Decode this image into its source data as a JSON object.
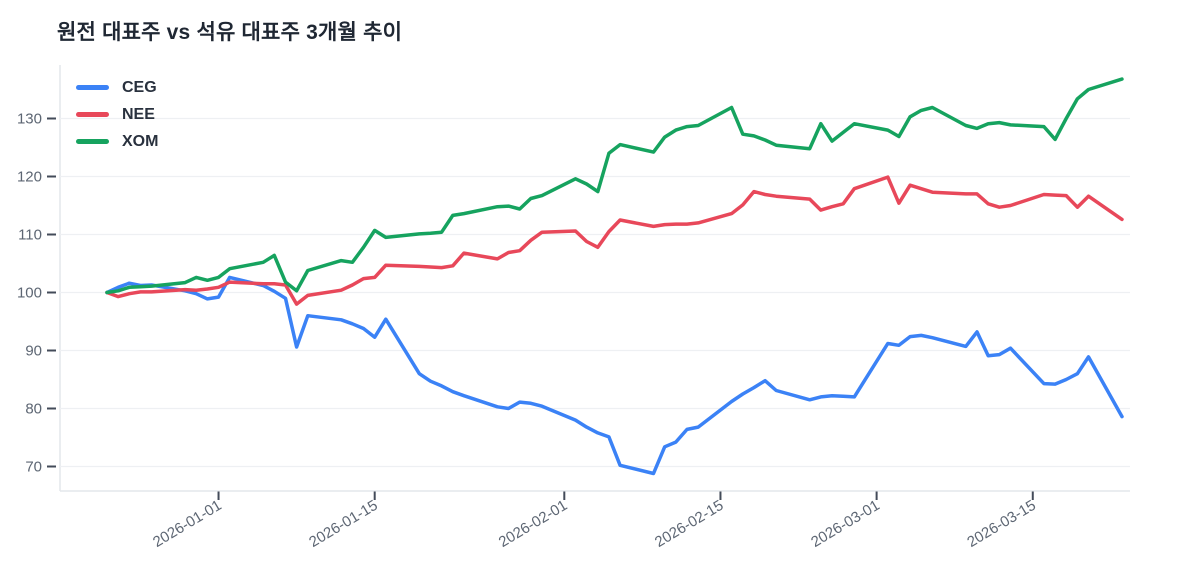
{
  "title": "원전 대표주 vs 석유 대표주 3개월 추이",
  "chart_data": {
    "type": "line",
    "title": "원전 대표주 vs 석유 대표주 3개월 추이",
    "xlabel": "",
    "ylabel": "",
    "grid": "horizontal",
    "legend_position": "top-left",
    "y_ticks": [
      70,
      80,
      90,
      100,
      110,
      120,
      130
    ],
    "ylim": [
      66.5,
      138.5
    ],
    "x_tick_labels": [
      "2026-01-01",
      "2026-01-15",
      "2026-02-01",
      "2026-02-15",
      "2026-03-01",
      "2026-03-15"
    ],
    "x": [
      "2025-12-22",
      "2025-12-23",
      "2025-12-24",
      "2025-12-25",
      "2025-12-26",
      "2025-12-29",
      "2025-12-30",
      "2025-12-31",
      "2026-01-01",
      "2026-01-02",
      "2026-01-05",
      "2026-01-06",
      "2026-01-07",
      "2026-01-08",
      "2026-01-09",
      "2026-01-12",
      "2026-01-13",
      "2026-01-14",
      "2026-01-15",
      "2026-01-16",
      "2026-01-19",
      "2026-01-20",
      "2026-01-21",
      "2026-01-22",
      "2026-01-23",
      "2026-01-26",
      "2026-01-27",
      "2026-01-28",
      "2026-01-29",
      "2026-01-30",
      "2026-02-02",
      "2026-02-03",
      "2026-02-04",
      "2026-02-05",
      "2026-02-06",
      "2026-02-09",
      "2026-02-10",
      "2026-02-11",
      "2026-02-12",
      "2026-02-13",
      "2026-02-16",
      "2026-02-17",
      "2026-02-18",
      "2026-02-19",
      "2026-02-20",
      "2026-02-23",
      "2026-02-24",
      "2026-02-25",
      "2026-02-26",
      "2026-02-27",
      "2026-03-02",
      "2026-03-03",
      "2026-03-04",
      "2026-03-05",
      "2026-03-06",
      "2026-03-09",
      "2026-03-10",
      "2026-03-11",
      "2026-03-12",
      "2026-03-13",
      "2026-03-16",
      "2026-03-17",
      "2026-03-18",
      "2026-03-19",
      "2026-03-20",
      "2026-03-23"
    ],
    "series": [
      {
        "name": "CEG",
        "color": "#3b82f6",
        "values": [
          100.0,
          100.9,
          101.6,
          101.2,
          101.3,
          100.3,
          99.8,
          98.9,
          99.2,
          102.6,
          101.2,
          100.2,
          99.0,
          90.6,
          96.0,
          95.3,
          94.6,
          93.8,
          92.3,
          95.4,
          86.0,
          84.7,
          83.9,
          82.9,
          82.2,
          80.3,
          80.0,
          81.1,
          80.9,
          80.4,
          78.0,
          76.8,
          75.8,
          75.1,
          70.2,
          68.8,
          73.4,
          74.2,
          76.4,
          76.8,
          81.2,
          82.5,
          83.6,
          84.8,
          83.1,
          81.5,
          82.0,
          82.2,
          82.1,
          82.0,
          91.2,
          90.9,
          92.4,
          92.6,
          92.2,
          90.7,
          93.2,
          89.1,
          89.3,
          90.4,
          84.3,
          84.2,
          85.0,
          86.0,
          88.9,
          78.6
        ]
      },
      {
        "name": "NEE",
        "color": "#e8485a",
        "values": [
          100.0,
          99.3,
          99.8,
          100.1,
          100.1,
          100.5,
          100.4,
          100.6,
          100.9,
          101.8,
          101.5,
          101.5,
          101.3,
          98.0,
          99.5,
          100.4,
          101.3,
          102.4,
          102.6,
          104.7,
          104.5,
          104.4,
          104.3,
          104.6,
          106.8,
          105.8,
          106.9,
          107.2,
          109.0,
          110.4,
          110.6,
          108.8,
          107.8,
          110.5,
          112.5,
          111.4,
          111.7,
          111.8,
          111.8,
          112.0,
          113.6,
          115.1,
          117.4,
          116.9,
          116.6,
          116.1,
          114.2,
          114.8,
          115.3,
          117.9,
          119.9,
          115.4,
          118.5,
          117.9,
          117.3,
          117.0,
          117.0,
          115.3,
          114.7,
          115.0,
          116.9,
          116.8,
          116.7,
          114.7,
          116.6,
          112.6
        ]
      },
      {
        "name": "XOM",
        "color": "#16a35f",
        "values": [
          100.0,
          100.3,
          100.9,
          101.0,
          101.1,
          101.7,
          102.6,
          102.1,
          102.6,
          104.1,
          105.2,
          106.4,
          101.8,
          100.3,
          103.8,
          105.5,
          105.2,
          107.8,
          110.7,
          109.5,
          110.1,
          110.2,
          110.4,
          113.3,
          113.6,
          114.8,
          114.9,
          114.4,
          116.2,
          116.7,
          119.6,
          118.7,
          117.4,
          124.0,
          125.5,
          124.2,
          126.8,
          128.0,
          128.6,
          128.8,
          131.9,
          127.3,
          127.0,
          126.3,
          125.4,
          124.8,
          129.1,
          126.1,
          127.6,
          129.1,
          128.0,
          126.9,
          130.3,
          131.4,
          131.9,
          128.8,
          128.3,
          129.1,
          129.3,
          128.9,
          128.6,
          126.4,
          130.0,
          133.4,
          135.0,
          136.8
        ]
      }
    ],
    "style": {
      "grid_color": "#eef0f3",
      "axis_border_color": "#e4e7eb",
      "tick_mark_color": "#434b59",
      "tick_label_color": "#5d6673",
      "title_color": "#1f2733",
      "line_width": 3.5
    }
  }
}
